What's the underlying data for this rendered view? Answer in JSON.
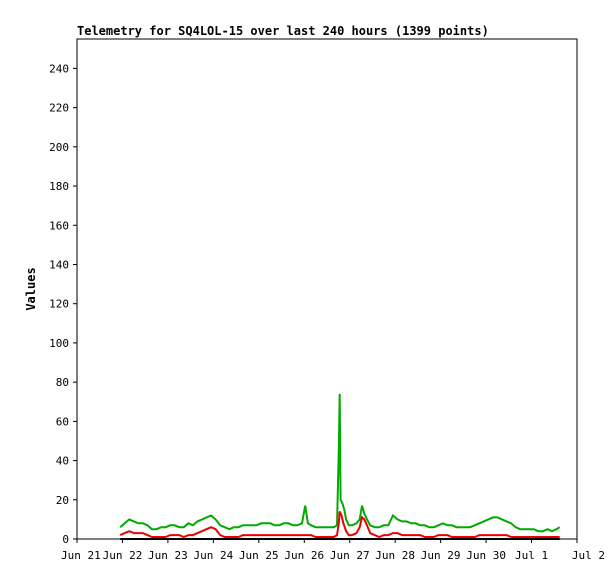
{
  "chart_data": {
    "type": "line",
    "title": "Telemetry for SQ4LOL-15 over last 240 hours (1399 points)",
    "xlabel": "",
    "ylabel": "Values",
    "xlim": [
      0,
      11
    ],
    "ylim": [
      0,
      255
    ],
    "x_ticks": [
      {
        "x": 0,
        "label": "Jun 21"
      },
      {
        "x": 1,
        "label": "Jun 22"
      },
      {
        "x": 2,
        "label": "Jun 23"
      },
      {
        "x": 3,
        "label": "Jun 24"
      },
      {
        "x": 4,
        "label": "Jun 25"
      },
      {
        "x": 5,
        "label": "Jun 26"
      },
      {
        "x": 6,
        "label": "Jun 27"
      },
      {
        "x": 7,
        "label": "Jun 28"
      },
      {
        "x": 8,
        "label": "Jun 29"
      },
      {
        "x": 9,
        "label": "Jun 30"
      },
      {
        "x": 10,
        "label": "Jul 1"
      },
      {
        "x": 11,
        "label": "Jul 2"
      }
    ],
    "y_ticks": [
      0,
      20,
      40,
      60,
      80,
      100,
      120,
      140,
      160,
      180,
      200,
      220,
      240
    ],
    "grid": false,
    "series": [
      {
        "color": "#00aa00",
        "points": [
          [
            0.95,
            6
          ],
          [
            1.05,
            8
          ],
          [
            1.15,
            10
          ],
          [
            1.25,
            9
          ],
          [
            1.35,
            8
          ],
          [
            1.45,
            8
          ],
          [
            1.55,
            7
          ],
          [
            1.65,
            5
          ],
          [
            1.75,
            5
          ],
          [
            1.85,
            6
          ],
          [
            1.95,
            6
          ],
          [
            2.05,
            7
          ],
          [
            2.15,
            7
          ],
          [
            2.25,
            6
          ],
          [
            2.35,
            6
          ],
          [
            2.45,
            8
          ],
          [
            2.55,
            7
          ],
          [
            2.65,
            9
          ],
          [
            2.75,
            10
          ],
          [
            2.85,
            11
          ],
          [
            2.95,
            12
          ],
          [
            3.05,
            10
          ],
          [
            3.15,
            7
          ],
          [
            3.25,
            6
          ],
          [
            3.35,
            5
          ],
          [
            3.45,
            6
          ],
          [
            3.55,
            6
          ],
          [
            3.65,
            7
          ],
          [
            3.75,
            7
          ],
          [
            3.85,
            7
          ],
          [
            3.95,
            7
          ],
          [
            4.05,
            8
          ],
          [
            4.15,
            8
          ],
          [
            4.25,
            8
          ],
          [
            4.35,
            7
          ],
          [
            4.45,
            7
          ],
          [
            4.55,
            8
          ],
          [
            4.65,
            8
          ],
          [
            4.75,
            7
          ],
          [
            4.85,
            7
          ],
          [
            4.95,
            8
          ],
          [
            5.02,
            17
          ],
          [
            5.08,
            8
          ],
          [
            5.15,
            7
          ],
          [
            5.25,
            6
          ],
          [
            5.35,
            6
          ],
          [
            5.45,
            6
          ],
          [
            5.55,
            6
          ],
          [
            5.65,
            6
          ],
          [
            5.72,
            7
          ],
          [
            5.76,
            45
          ],
          [
            5.78,
            74
          ],
          [
            5.8,
            20
          ],
          [
            5.84,
            18
          ],
          [
            5.88,
            15
          ],
          [
            5.92,
            10
          ],
          [
            5.98,
            7
          ],
          [
            6.05,
            7
          ],
          [
            6.15,
            8
          ],
          [
            6.22,
            10
          ],
          [
            6.27,
            17
          ],
          [
            6.32,
            13
          ],
          [
            6.38,
            10
          ],
          [
            6.45,
            7
          ],
          [
            6.55,
            6
          ],
          [
            6.65,
            6
          ],
          [
            6.75,
            7
          ],
          [
            6.85,
            7
          ],
          [
            6.95,
            12
          ],
          [
            7.05,
            10
          ],
          [
            7.15,
            9
          ],
          [
            7.25,
            9
          ],
          [
            7.35,
            8
          ],
          [
            7.45,
            8
          ],
          [
            7.55,
            7
          ],
          [
            7.65,
            7
          ],
          [
            7.75,
            6
          ],
          [
            7.85,
            6
          ],
          [
            7.95,
            7
          ],
          [
            8.05,
            8
          ],
          [
            8.15,
            7
          ],
          [
            8.25,
            7
          ],
          [
            8.35,
            6
          ],
          [
            8.45,
            6
          ],
          [
            8.55,
            6
          ],
          [
            8.65,
            6
          ],
          [
            8.75,
            7
          ],
          [
            8.85,
            8
          ],
          [
            8.95,
            9
          ],
          [
            9.05,
            10
          ],
          [
            9.15,
            11
          ],
          [
            9.25,
            11
          ],
          [
            9.35,
            10
          ],
          [
            9.45,
            9
          ],
          [
            9.55,
            8
          ],
          [
            9.65,
            6
          ],
          [
            9.75,
            5
          ],
          [
            9.85,
            5
          ],
          [
            9.95,
            5
          ],
          [
            10.05,
            5
          ],
          [
            10.15,
            4
          ],
          [
            10.25,
            4
          ],
          [
            10.35,
            5
          ],
          [
            10.45,
            4
          ],
          [
            10.55,
            5
          ],
          [
            10.62,
            6
          ]
        ]
      },
      {
        "color": "#ee0000",
        "points": [
          [
            0.95,
            2
          ],
          [
            1.05,
            3
          ],
          [
            1.15,
            4
          ],
          [
            1.25,
            3
          ],
          [
            1.35,
            3
          ],
          [
            1.45,
            3
          ],
          [
            1.55,
            2
          ],
          [
            1.65,
            1
          ],
          [
            1.75,
            1
          ],
          [
            1.85,
            1
          ],
          [
            1.95,
            1
          ],
          [
            2.05,
            2
          ],
          [
            2.15,
            2
          ],
          [
            2.25,
            2
          ],
          [
            2.35,
            1
          ],
          [
            2.45,
            2
          ],
          [
            2.55,
            2
          ],
          [
            2.65,
            3
          ],
          [
            2.75,
            4
          ],
          [
            2.85,
            5
          ],
          [
            2.95,
            6
          ],
          [
            3.05,
            5
          ],
          [
            3.15,
            2
          ],
          [
            3.25,
            1
          ],
          [
            3.35,
            1
          ],
          [
            3.45,
            1
          ],
          [
            3.55,
            1
          ],
          [
            3.65,
            2
          ],
          [
            3.75,
            2
          ],
          [
            3.85,
            2
          ],
          [
            3.95,
            2
          ],
          [
            4.05,
            2
          ],
          [
            4.15,
            2
          ],
          [
            4.25,
            2
          ],
          [
            4.35,
            2
          ],
          [
            4.45,
            2
          ],
          [
            4.55,
            2
          ],
          [
            4.65,
            2
          ],
          [
            4.75,
            2
          ],
          [
            4.85,
            2
          ],
          [
            4.95,
            2
          ],
          [
            5.05,
            2
          ],
          [
            5.15,
            2
          ],
          [
            5.25,
            1
          ],
          [
            5.35,
            1
          ],
          [
            5.45,
            1
          ],
          [
            5.55,
            1
          ],
          [
            5.65,
            1
          ],
          [
            5.72,
            2
          ],
          [
            5.76,
            8
          ],
          [
            5.78,
            14
          ],
          [
            5.82,
            12
          ],
          [
            5.86,
            8
          ],
          [
            5.92,
            4
          ],
          [
            5.98,
            2
          ],
          [
            6.05,
            2
          ],
          [
            6.15,
            3
          ],
          [
            6.22,
            6
          ],
          [
            6.27,
            11
          ],
          [
            6.32,
            10
          ],
          [
            6.38,
            7
          ],
          [
            6.45,
            3
          ],
          [
            6.55,
            2
          ],
          [
            6.65,
            1
          ],
          [
            6.75,
            2
          ],
          [
            6.85,
            2
          ],
          [
            6.95,
            3
          ],
          [
            7.05,
            3
          ],
          [
            7.15,
            2
          ],
          [
            7.25,
            2
          ],
          [
            7.35,
            2
          ],
          [
            7.45,
            2
          ],
          [
            7.55,
            2
          ],
          [
            7.65,
            1
          ],
          [
            7.75,
            1
          ],
          [
            7.85,
            1
          ],
          [
            7.95,
            2
          ],
          [
            8.05,
            2
          ],
          [
            8.15,
            2
          ],
          [
            8.25,
            1
          ],
          [
            8.35,
            1
          ],
          [
            8.45,
            1
          ],
          [
            8.55,
            1
          ],
          [
            8.65,
            1
          ],
          [
            8.75,
            1
          ],
          [
            8.85,
            2
          ],
          [
            8.95,
            2
          ],
          [
            9.05,
            2
          ],
          [
            9.15,
            2
          ],
          [
            9.25,
            2
          ],
          [
            9.35,
            2
          ],
          [
            9.45,
            2
          ],
          [
            9.55,
            1
          ],
          [
            9.65,
            1
          ],
          [
            9.75,
            1
          ],
          [
            9.85,
            1
          ],
          [
            9.95,
            1
          ],
          [
            10.05,
            1
          ],
          [
            10.15,
            1
          ],
          [
            10.25,
            1
          ],
          [
            10.35,
            1
          ],
          [
            10.45,
            1
          ],
          [
            10.55,
            1
          ],
          [
            10.62,
            1
          ]
        ]
      },
      {
        "color": "#000000",
        "points": [
          [
            0.95,
            0
          ],
          [
            10.62,
            0
          ]
        ]
      }
    ]
  }
}
